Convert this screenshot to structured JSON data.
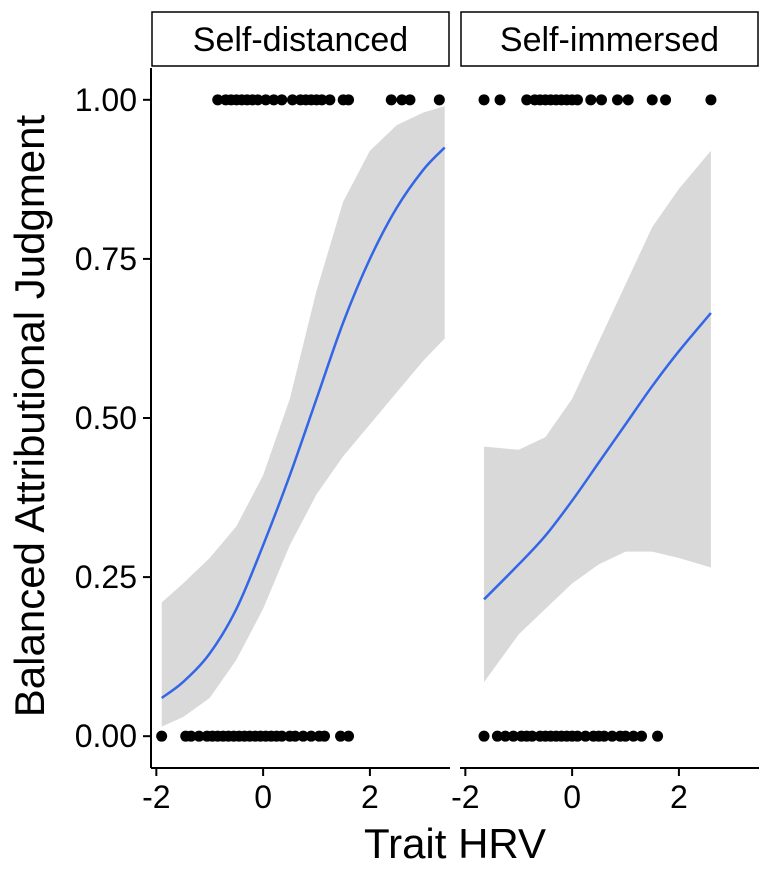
{
  "colors": {
    "fit_line": "#3366e6",
    "ribbon": "#d9d9d9",
    "points": "#000000"
  },
  "chart_data": {
    "type": "scatter",
    "xlabel": "Trait HRV",
    "ylabel": "Balanced Attributional Judgment",
    "xlim": [
      -2.1,
      3.5
    ],
    "ylim": [
      -0.05,
      1.05
    ],
    "x_ticks": [
      -2,
      0,
      2
    ],
    "y_ticks": [
      0.0,
      0.25,
      0.5,
      0.75,
      1.0
    ],
    "x_tick_labels": [
      "-2",
      "0",
      "2"
    ],
    "y_tick_labels": [
      "0.00",
      "0.25",
      "0.50",
      "0.75",
      "1.00"
    ],
    "grid": false,
    "legend": "none",
    "panels": [
      {
        "label": "Self-distanced",
        "points_y1": [
          -0.85,
          -0.7,
          -0.6,
          -0.5,
          -0.4,
          -0.3,
          -0.2,
          -0.1,
          0.05,
          0.2,
          0.35,
          0.55,
          0.7,
          0.8,
          0.9,
          1.0,
          1.1,
          1.25,
          1.5,
          1.6,
          2.4,
          2.6,
          2.75,
          3.3
        ],
        "points_y0": [
          -1.9,
          -1.45,
          -1.35,
          -1.2,
          -1.05,
          -0.95,
          -0.85,
          -0.75,
          -0.65,
          -0.55,
          -0.45,
          -0.35,
          -0.25,
          -0.15,
          -0.05,
          0.05,
          0.15,
          0.25,
          0.35,
          0.5,
          0.6,
          0.75,
          0.9,
          1.05,
          1.15,
          1.45,
          1.6
        ],
        "fit": {
          "x": [
            -1.9,
            -1.5,
            -1.0,
            -0.5,
            0.0,
            0.5,
            1.0,
            1.5,
            2.0,
            2.5,
            3.0,
            3.4
          ],
          "y": [
            0.06,
            0.085,
            0.13,
            0.2,
            0.3,
            0.41,
            0.53,
            0.65,
            0.75,
            0.83,
            0.89,
            0.925
          ],
          "lower": [
            0.015,
            0.03,
            0.06,
            0.12,
            0.2,
            0.3,
            0.38,
            0.44,
            0.49,
            0.54,
            0.59,
            0.625
          ],
          "upper": [
            0.21,
            0.24,
            0.28,
            0.33,
            0.41,
            0.53,
            0.7,
            0.84,
            0.92,
            0.96,
            0.98,
            0.99
          ]
        }
      },
      {
        "label": "Self-immersed",
        "points_y1": [
          -1.65,
          -1.35,
          -0.85,
          -0.7,
          -0.6,
          -0.5,
          -0.4,
          -0.3,
          -0.2,
          -0.1,
          0.0,
          0.1,
          0.35,
          0.55,
          0.85,
          1.05,
          1.5,
          1.75,
          2.6
        ],
        "points_y0": [
          -1.65,
          -1.4,
          -1.25,
          -1.1,
          -0.95,
          -0.85,
          -0.75,
          -0.6,
          -0.5,
          -0.4,
          -0.3,
          -0.2,
          -0.1,
          0.0,
          0.1,
          0.25,
          0.4,
          0.5,
          0.6,
          0.75,
          0.9,
          1.0,
          1.15,
          1.3,
          1.6
        ],
        "fit": {
          "x": [
            -1.65,
            -1.0,
            -0.5,
            0.0,
            0.5,
            1.0,
            1.5,
            2.0,
            2.6
          ],
          "y": [
            0.215,
            0.27,
            0.315,
            0.37,
            0.43,
            0.49,
            0.55,
            0.605,
            0.665
          ],
          "lower": [
            0.085,
            0.16,
            0.2,
            0.24,
            0.27,
            0.29,
            0.29,
            0.28,
            0.265
          ],
          "upper": [
            0.455,
            0.45,
            0.47,
            0.53,
            0.62,
            0.71,
            0.8,
            0.86,
            0.92
          ]
        }
      }
    ]
  }
}
